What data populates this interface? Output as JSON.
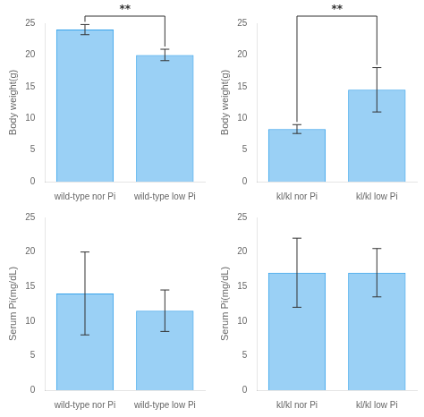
{
  "chart_data": [
    {
      "type": "bar",
      "categories": [
        "wild-type nor Pi",
        "wild-type low Pi"
      ],
      "values": [
        24.0,
        20.0
      ],
      "errors": [
        0.8,
        0.9
      ],
      "ylabel": "Body weight(g)",
      "ylim": [
        0,
        25
      ],
      "yticks": [
        0,
        5,
        10,
        15,
        20,
        25
      ],
      "grid": false,
      "annotations": [
        "**"
      ]
    },
    {
      "type": "bar",
      "categories": [
        "kl/kl nor Pi",
        "kl/kl low Pi"
      ],
      "values": [
        8.3,
        14.5
      ],
      "errors": [
        0.7,
        3.5
      ],
      "ylabel": "Body weight(g)",
      "ylim": [
        0,
        25
      ],
      "yticks": [
        0,
        5,
        10,
        15,
        20,
        25
      ],
      "grid": false,
      "annotations": [
        "**"
      ]
    },
    {
      "type": "bar",
      "categories": [
        "wild-type nor Pi",
        "wild-type low Pi"
      ],
      "values": [
        14.0,
        11.5
      ],
      "errors": [
        6.0,
        3.0
      ],
      "ylabel": "Serum Pi(mg/dL)",
      "ylim": [
        0,
        25
      ],
      "yticks": [
        0,
        5,
        10,
        15,
        20,
        25
      ],
      "grid": false
    },
    {
      "type": "bar",
      "categories": [
        "kl/kl nor Pi",
        "kl/kl low Pi"
      ],
      "values": [
        17.0,
        17.0
      ],
      "errors": [
        5.0,
        3.5
      ],
      "ylabel": "Serum Pi(mg/dL)",
      "ylim": [
        0,
        25
      ],
      "yticks": [
        0,
        5,
        10,
        15,
        20,
        25
      ],
      "grid": false
    }
  ]
}
